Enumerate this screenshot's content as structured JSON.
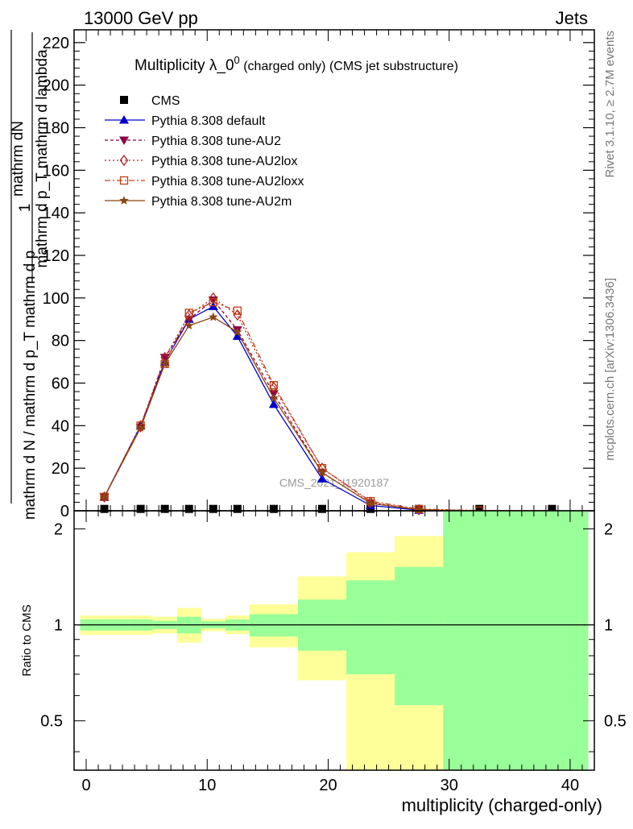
{
  "header": {
    "left": "13000 GeV pp",
    "right": "Jets"
  },
  "side_text": {
    "rivet": "Rivet 3.1.10, ≥ 2.7M events",
    "mcplots": "mcplots.cern.ch [arXiv:1306.3436]"
  },
  "watermark": "CMS_2021_I1920187",
  "chart_data": [
    {
      "type": "line",
      "title": "Multiplicity λ_0⁰ (charged only) (CMS jet substructure)",
      "title_main": "Multiplicity λ_0",
      "title_sup": "0",
      "title_rest": " (charged only) (CMS jet substructure)",
      "ylabel_num": "mathrm dN",
      "ylabel_den": "mathrm d p_T mathrm d lambda",
      "ylabel_one": "1",
      "ylabel_den2": "mathrm d N / mathrm d p_T mathrm d p",
      "xlim": [
        -1,
        42
      ],
      "ylim": [
        0,
        226
      ],
      "yticks": [
        0,
        20,
        40,
        60,
        80,
        100,
        120,
        140,
        160,
        180,
        200,
        220
      ],
      "legend_position": "top-left",
      "x": [
        1.5,
        4.5,
        6.5,
        8.5,
        10.5,
        12.5,
        15.5,
        19.5,
        23.5,
        27.5,
        32.5,
        38.5
      ],
      "series": [
        {
          "name": "CMS",
          "color": "#000000",
          "marker": "square",
          "values": [
            0.5,
            0.5,
            0.5,
            0.5,
            0.5,
            0.5,
            0.5,
            0.5,
            0.5,
            0.5,
            0.5,
            0.5
          ]
        },
        {
          "name": "Pythia 8.308 default",
          "color": "#0000cc",
          "marker": "triangle-up",
          "dash": "",
          "values": [
            6.5,
            40,
            70,
            90,
            96,
            82,
            50,
            15,
            2.5,
            0.3,
            0.0,
            0.0
          ]
        },
        {
          "name": "Pythia 8.308 tune-AU2",
          "color": "#8b0045",
          "marker": "triangle-down",
          "dash": "4,3",
          "values": [
            6.5,
            39,
            72,
            90,
            99,
            85,
            55,
            18,
            3.5,
            0.5,
            0.0,
            0.0
          ]
        },
        {
          "name": "Pythia 8.308 tune-AU2lox",
          "color": "#b22222",
          "marker": "diamond-open",
          "dash": "2,3",
          "values": [
            6.5,
            40,
            72,
            92,
            100,
            92,
            58,
            20,
            4.0,
            0.5,
            0.0,
            0.0
          ]
        },
        {
          "name": "Pythia 8.308 tune-AU2loxx",
          "color": "#c04010",
          "marker": "square-open",
          "dash": "7,3,2,3",
          "values": [
            6.5,
            40,
            69,
            93,
            98,
            94,
            59,
            20,
            4.5,
            0.8,
            0.1,
            0.0
          ]
        },
        {
          "name": "Pythia 8.308 tune-AU2m",
          "color": "#8b4513",
          "marker": "star",
          "dash": "",
          "values": [
            6.5,
            39,
            69,
            87,
            91,
            84,
            53,
            18,
            3.5,
            0.5,
            0.0,
            0.0
          ]
        }
      ]
    },
    {
      "type": "area",
      "xlabel": "multiplicity (charged-only)",
      "ylabel": "Ratio to CMS",
      "xlim": [
        -1,
        42
      ],
      "ylim": [
        0.35,
        2.28
      ],
      "xticks": [
        0,
        10,
        20,
        30,
        40
      ],
      "yticks": [
        0.5,
        1,
        2
      ],
      "reference": 1,
      "bins": [
        {
          "lo": -0.5,
          "hi": 3.5,
          "yellow": [
            0.93,
            1.07
          ],
          "green": [
            0.96,
            1.04
          ]
        },
        {
          "lo": 3.5,
          "hi": 5.5,
          "yellow": [
            0.93,
            1.07
          ],
          "green": [
            0.96,
            1.04
          ]
        },
        {
          "lo": 5.5,
          "hi": 7.5,
          "yellow": [
            0.94,
            1.06
          ],
          "green": [
            0.97,
            1.03
          ]
        },
        {
          "lo": 7.5,
          "hi": 9.5,
          "yellow": [
            0.88,
            1.13
          ],
          "green": [
            0.94,
            1.06
          ]
        },
        {
          "lo": 9.5,
          "hi": 11.5,
          "yellow": [
            0.955,
            1.045
          ],
          "green": [
            0.975,
            1.025
          ]
        },
        {
          "lo": 11.5,
          "hi": 13.5,
          "yellow": [
            0.935,
            1.07
          ],
          "green": [
            0.96,
            1.04
          ]
        },
        {
          "lo": 13.5,
          "hi": 17.5,
          "yellow": [
            0.85,
            1.16
          ],
          "green": [
            0.92,
            1.08
          ]
        },
        {
          "lo": 17.5,
          "hi": 21.5,
          "yellow": [
            0.67,
            1.42
          ],
          "green": [
            0.83,
            1.2
          ]
        },
        {
          "lo": 21.5,
          "hi": 25.5,
          "yellow": [
            0.35,
            1.69
          ],
          "green": [
            0.7,
            1.38
          ]
        },
        {
          "lo": 25.5,
          "hi": 29.5,
          "yellow": [
            0.35,
            1.9
          ],
          "green": [
            0.56,
            1.52
          ]
        },
        {
          "lo": 29.5,
          "hi": 41.5,
          "yellow": [
            0.35,
            2.28
          ],
          "green": [
            0.35,
            2.28
          ]
        }
      ]
    }
  ]
}
